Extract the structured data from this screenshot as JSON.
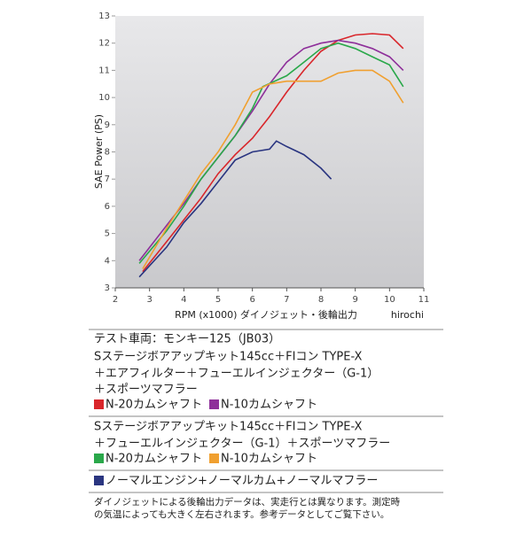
{
  "chart_data": {
    "type": "line",
    "y_label": "SAE Power (PS)",
    "x_label": "RPM (x1000) ダイノジェット・後輪出力",
    "watermark": "hirochi",
    "xlim": [
      2,
      11
    ],
    "xticks": [
      2,
      3,
      4,
      5,
      6,
      7,
      8,
      9,
      10,
      11
    ],
    "ylim": [
      3,
      13
    ],
    "yticks": [
      3,
      4,
      5,
      6,
      7,
      8,
      9,
      10,
      11,
      12,
      13
    ],
    "series": [
      {
        "name": "N-20カムシャフト",
        "color": "#d9262b",
        "x": [
          2.8,
          3.5,
          4,
          4.5,
          5,
          5.5,
          6,
          6.5,
          7,
          7.5,
          8,
          8.5,
          9,
          9.5,
          10,
          10.4
        ],
        "values": [
          3.6,
          4.7,
          5.5,
          6.3,
          7.2,
          7.9,
          8.5,
          9.3,
          10.2,
          11.0,
          11.7,
          12.1,
          12.3,
          12.35,
          12.3,
          11.8
        ]
      },
      {
        "name": "N-10カムシャフト",
        "color": "#8e2f9a",
        "x": [
          2.7,
          3.5,
          4,
          4.5,
          5,
          5.5,
          6,
          6.5,
          7,
          7.5,
          8,
          8.5,
          9,
          9.5,
          10,
          10.4
        ],
        "values": [
          4.0,
          5.3,
          6.1,
          7.0,
          7.8,
          8.6,
          9.5,
          10.5,
          11.3,
          11.8,
          12.0,
          12.1,
          12.0,
          11.8,
          11.5,
          11.0
        ]
      },
      {
        "name": "N-20カムシャフト",
        "color": "#2aa84a",
        "x": [
          2.7,
          3.5,
          4,
          4.5,
          5,
          5.5,
          6,
          6.3,
          7,
          7.5,
          8,
          8.5,
          9,
          9.5,
          10,
          10.4
        ],
        "values": [
          3.9,
          5.1,
          6.0,
          7.0,
          7.8,
          8.6,
          9.6,
          10.4,
          10.8,
          11.3,
          11.8,
          12.0,
          11.8,
          11.5,
          11.2,
          10.4
        ]
      },
      {
        "name": "N-10カムシャフト",
        "color": "#f0a030",
        "x": [
          2.8,
          3.5,
          4,
          4.5,
          5,
          5.5,
          6,
          6.5,
          7,
          7.5,
          8,
          8.5,
          9,
          9.5,
          10,
          10.4
        ],
        "values": [
          3.7,
          5.2,
          6.2,
          7.2,
          8.0,
          9.0,
          10.2,
          10.5,
          10.6,
          10.6,
          10.6,
          10.9,
          11.0,
          11.0,
          10.6,
          9.8
        ]
      },
      {
        "name": "ノーマルエンジン+ノーマルカム+ノーマルマフラー",
        "color": "#2a3580",
        "x": [
          2.7,
          3.5,
          4,
          4.5,
          5,
          5.5,
          6,
          6.5,
          6.7,
          7,
          7.5,
          8,
          8.3
        ],
        "values": [
          3.4,
          4.5,
          5.4,
          6.1,
          6.9,
          7.7,
          8.0,
          8.1,
          8.4,
          8.2,
          7.9,
          7.4,
          7.0
        ]
      }
    ]
  },
  "spec": {
    "vehicle": "テスト車両：モンキー125（JB03）",
    "group1": [
      "Sステージボアアップキット145cc＋FIコン TYPE-X",
      "＋エアフィルター＋フューエルインジェクター（G-1）",
      "＋スポーツマフラー"
    ],
    "group2": [
      "Sステージボアアップキット145cc＋FIコン TYPE-X",
      "＋フューエルインジェクター（G-1）＋スポーツマフラー"
    ],
    "note": [
      "ダイノジェットによる後輪出力データは、実走行とは異なります。測定時",
      "の気温によっても大きく左右されます。参考データとしてご覧下さい。"
    ]
  }
}
